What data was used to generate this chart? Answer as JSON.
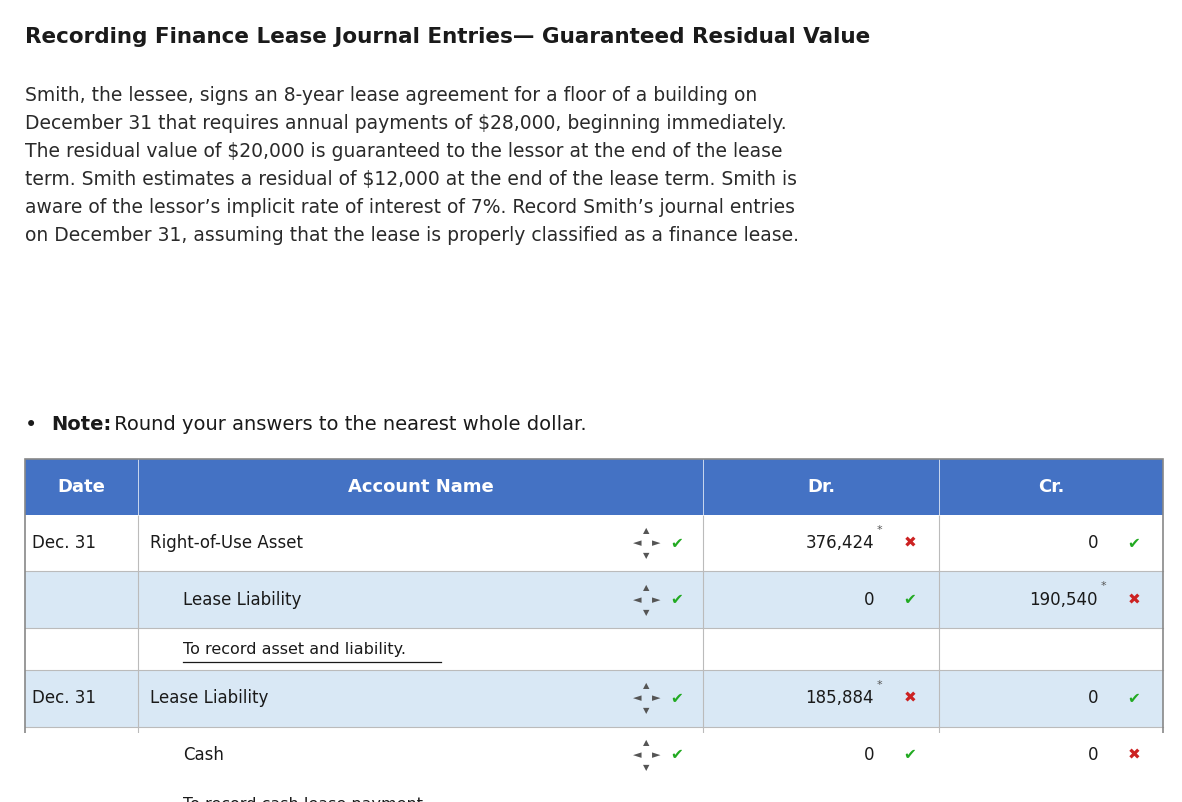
{
  "title": "Recording Finance Lease Journal Entries— Guaranteed Residual Value",
  "paragraph": "Smith, the lessee, signs an 8-year lease agreement for a floor of a building on\nDecember 31 that requires annual payments of $28,000, beginning immediately.\nThe residual value of $20,000 is guaranteed to the lessor at the end of the lease\nterm. Smith estimates a residual of $12,000 at the end of the lease term. Smith is\naware of the lessor’s implicit rate of interest of 7%. Record Smith’s journal entries\non December 31, assuming that the lease is properly classified as a finance lease.",
  "note_bold": "Note:",
  "note_rest": " Round your answers to the nearest whole dollar.",
  "header_bg": "#4472C4",
  "header_text_color": "#FFFFFF",
  "row_bg_light": "#D9E8F5",
  "row_bg_white": "#FFFFFF",
  "border_color": "#AAAAAA",
  "table_rows": [
    {
      "date": "Dec. 31",
      "account": "Right-of-Use Asset",
      "indent": false,
      "dr_value": "376,424",
      "dr_star": true,
      "dr_check": false,
      "dr_x_mark": true,
      "cr_value": "0",
      "cr_star": false,
      "cr_check": true,
      "cr_x_mark": false,
      "has_arrows": true,
      "bg": "white",
      "is_note": false
    },
    {
      "date": "",
      "account": "Lease Liability",
      "indent": true,
      "dr_value": "0",
      "dr_star": false,
      "dr_check": true,
      "dr_x_mark": false,
      "cr_value": "190,540",
      "cr_star": true,
      "cr_check": false,
      "cr_x_mark": true,
      "has_arrows": true,
      "bg": "light",
      "is_note": false
    },
    {
      "date": "",
      "account": "To record asset and liability.",
      "indent": true,
      "dr_value": "",
      "cr_value": "",
      "has_arrows": false,
      "bg": "white",
      "is_note": true
    },
    {
      "date": "Dec. 31",
      "account": "Lease Liability",
      "indent": false,
      "dr_value": "185,884",
      "dr_star": true,
      "dr_check": false,
      "dr_x_mark": true,
      "cr_value": "0",
      "cr_star": false,
      "cr_check": true,
      "cr_x_mark": false,
      "has_arrows": true,
      "bg": "light",
      "is_note": false
    },
    {
      "date": "",
      "account": "Cash",
      "indent": true,
      "dr_value": "0",
      "dr_star": false,
      "dr_check": true,
      "dr_x_mark": false,
      "cr_value": "0",
      "cr_star": false,
      "cr_check": false,
      "cr_x_mark": true,
      "has_arrows": true,
      "bg": "white",
      "is_note": false
    },
    {
      "date": "",
      "account": "To record cash lease payment",
      "indent": true,
      "dr_value": "",
      "cr_value": "",
      "has_arrows": false,
      "bg": "light",
      "is_note": true
    }
  ]
}
